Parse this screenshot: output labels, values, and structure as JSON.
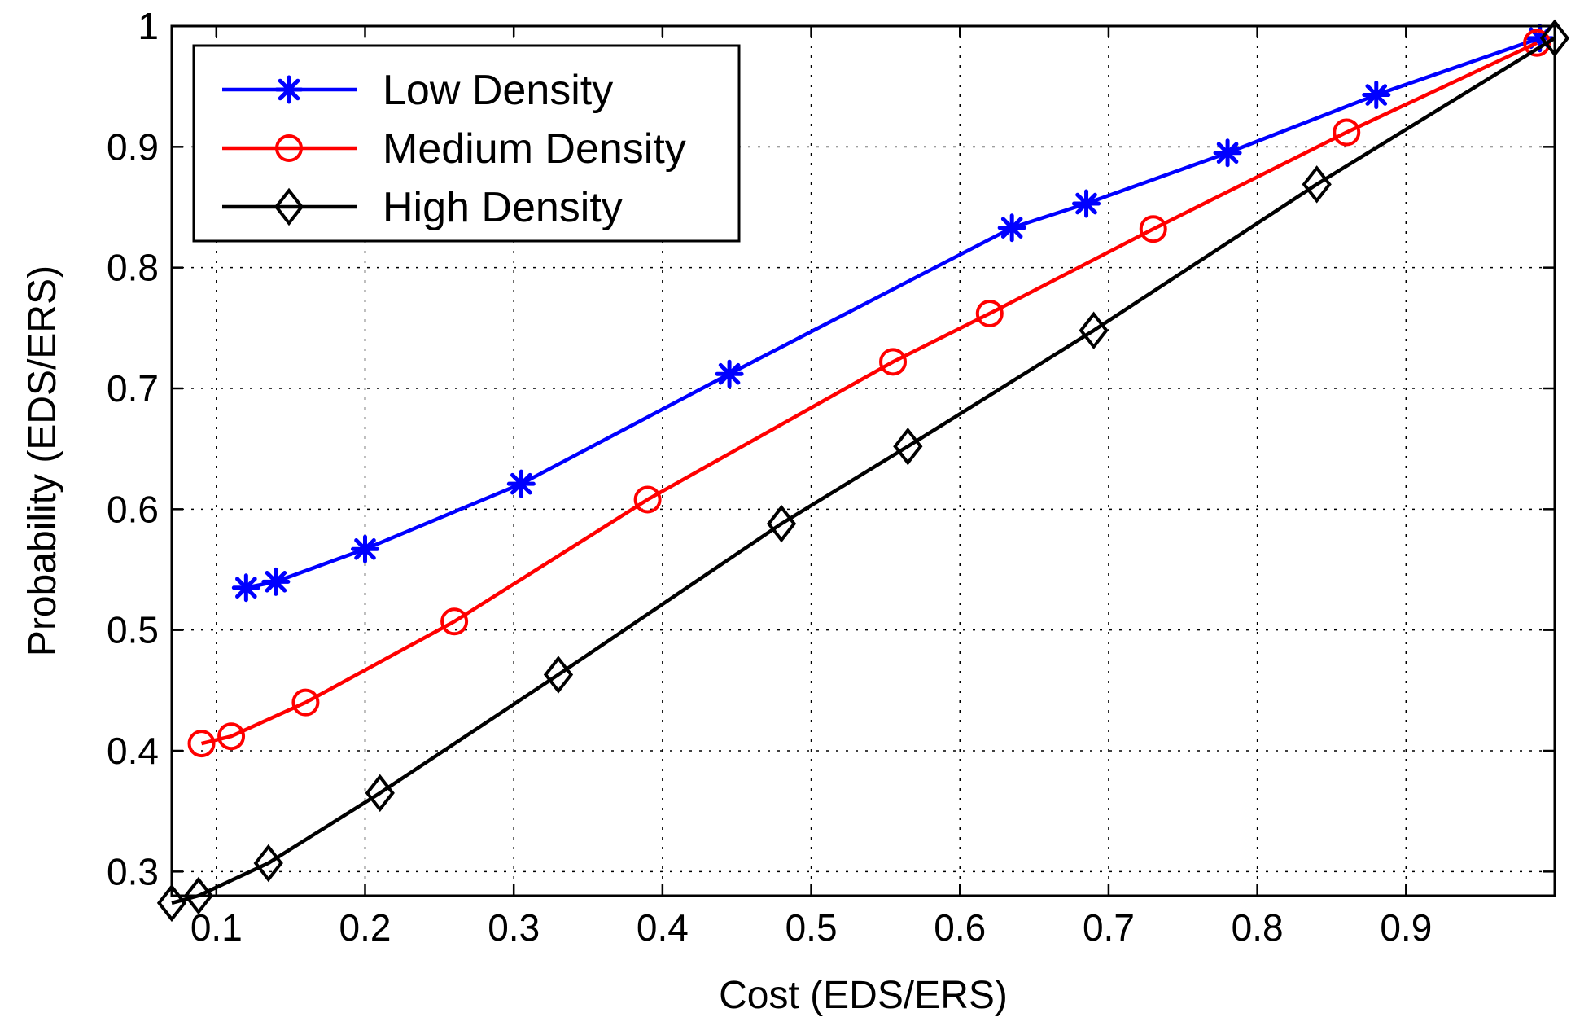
{
  "chart_data": {
    "type": "line",
    "title": "",
    "xlabel": "Cost (EDS/ERS)",
    "ylabel": "Probability (EDS/ERS)",
    "xlim": [
      0.07,
      1.0
    ],
    "ylim": [
      0.28,
      1.0
    ],
    "xticks": [
      0.1,
      0.2,
      0.3,
      0.4,
      0.5,
      0.6,
      0.7,
      0.8,
      0.9
    ],
    "xtick_labels": [
      "0.1",
      "0.2",
      "0.3",
      "0.4",
      "0.5",
      "0.6",
      "0.7",
      "0.8",
      "0.9"
    ],
    "yticks": [
      0.3,
      0.4,
      0.5,
      0.6,
      0.7,
      0.8,
      0.9,
      1.0
    ],
    "ytick_labels": [
      "0.3",
      "0.4",
      "0.5",
      "0.6",
      "0.7",
      "0.8",
      "0.9",
      "1"
    ],
    "grid": true,
    "legend_position": "top-left",
    "series": [
      {
        "name": "Low Density",
        "color": "#0000ff",
        "marker": "asterisk",
        "x": [
          0.12,
          0.14,
          0.2,
          0.305,
          0.445,
          0.635,
          0.685,
          0.78,
          0.88,
          0.99
        ],
        "y": [
          0.535,
          0.54,
          0.567,
          0.621,
          0.712,
          0.833,
          0.853,
          0.895,
          0.943,
          0.99
        ]
      },
      {
        "name": "Medium Density",
        "color": "#ff0000",
        "marker": "circle",
        "x": [
          0.09,
          0.11,
          0.16,
          0.26,
          0.39,
          0.555,
          0.62,
          0.73,
          0.86,
          0.988
        ],
        "y": [
          0.406,
          0.412,
          0.44,
          0.507,
          0.608,
          0.722,
          0.762,
          0.832,
          0.912,
          0.986
        ]
      },
      {
        "name": "High Density",
        "color": "#000000",
        "marker": "diamond",
        "x": [
          0.07,
          0.088,
          0.135,
          0.21,
          0.33,
          0.48,
          0.565,
          0.69,
          0.84,
          1.0
        ],
        "y": [
          0.274,
          0.28,
          0.307,
          0.365,
          0.463,
          0.588,
          0.652,
          0.748,
          0.869,
          0.99
        ]
      }
    ]
  }
}
